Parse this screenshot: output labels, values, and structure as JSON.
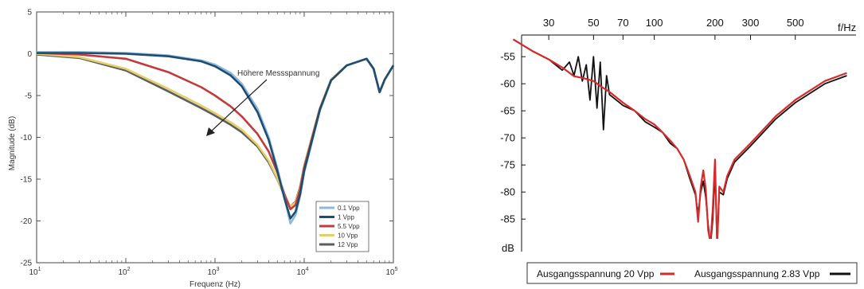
{
  "chart_data": [
    {
      "type": "line",
      "xlabel": "Frequenz (Hz)",
      "ylabel": "Magnitude (dB)",
      "xscale": "log",
      "xlim": [
        10,
        100000
      ],
      "ylim": [
        -25,
        5
      ],
      "x_ticks": [
        {
          "value": 10,
          "base": "10",
          "exp": "1"
        },
        {
          "value": 100,
          "base": "10",
          "exp": "2"
        },
        {
          "value": 1000,
          "base": "10",
          "exp": "3"
        },
        {
          "value": 10000,
          "base": "10",
          "exp": "4"
        },
        {
          "value": 100000,
          "base": "10",
          "exp": "5"
        }
      ],
      "y_ticks": [
        "5",
        "0",
        "-5",
        "-10",
        "-15",
        "-20",
        "-25"
      ],
      "y_tick_values": [
        5,
        0,
        -5,
        -10,
        -15,
        -20,
        -25
      ],
      "annotation": "Höhere Messspannung",
      "legend_position": "bottom-right",
      "series": [
        {
          "name": "0.1 Vpp",
          "color": "#8fb8dc",
          "x": [
            10,
            30,
            100,
            300,
            700,
            1000,
            1500,
            2000,
            3000,
            4000,
            5000,
            6000,
            7000,
            8000,
            9000,
            10000,
            15000,
            20000,
            30000,
            50000,
            60000,
            70000,
            80000,
            100000
          ],
          "y": [
            0.2,
            0.2,
            0.1,
            -0.2,
            -0.8,
            -1.3,
            -2.3,
            -3.6,
            -6.6,
            -10.0,
            -13.7,
            -17.2,
            -20.3,
            -19.3,
            -17.0,
            -14.2,
            -6.8,
            -3.2,
            -1.4,
            -0.6,
            -1.8,
            -4.6,
            -3.1,
            -1.4
          ]
        },
        {
          "name": "1 Vpp",
          "color": "#1d4e72",
          "x": [
            10,
            30,
            100,
            300,
            700,
            1000,
            1500,
            2000,
            3000,
            4000,
            5000,
            6000,
            7000,
            8000,
            9000,
            10000,
            15000,
            20000,
            30000,
            50000,
            60000,
            70000,
            80000,
            100000
          ],
          "y": [
            0.1,
            0.1,
            0.0,
            -0.3,
            -0.9,
            -1.5,
            -2.6,
            -3.9,
            -7.0,
            -10.3,
            -14.0,
            -17.3,
            -19.7,
            -18.9,
            -16.8,
            -14.0,
            -6.7,
            -3.2,
            -1.4,
            -0.6,
            -1.8,
            -4.6,
            -3.1,
            -1.4
          ]
        },
        {
          "name": "5.5 Vpp",
          "color": "#c23a3a",
          "x": [
            10,
            30,
            100,
            300,
            700,
            1000,
            1500,
            2000,
            3000,
            4000,
            5000,
            6000,
            7000,
            8000,
            9000,
            10000,
            15000,
            20000,
            30000,
            50000,
            60000,
            70000,
            80000,
            100000
          ],
          "y": [
            0.1,
            -0.1,
            -0.6,
            -2.2,
            -4.0,
            -5.0,
            -6.3,
            -7.5,
            -9.6,
            -11.7,
            -14.2,
            -16.8,
            -18.6,
            -18.1,
            -16.2,
            -13.6,
            -6.6,
            -3.2,
            -1.4,
            -0.6,
            -1.8,
            -4.6,
            -3.1,
            -1.4
          ]
        },
        {
          "name": "10 Vpp",
          "color": "#e5cf6a",
          "x": [
            10,
            30,
            100,
            300,
            700,
            1000,
            1500,
            2000,
            3000,
            4000,
            5000,
            6000,
            7000,
            8000,
            9000,
            10000,
            15000,
            20000,
            30000,
            50000,
            60000,
            70000,
            80000,
            100000
          ],
          "y": [
            0.0,
            -0.4,
            -1.8,
            -4.2,
            -6.2,
            -7.1,
            -8.2,
            -9.1,
            -10.9,
            -12.8,
            -14.9,
            -17.0,
            -18.3,
            -17.8,
            -16.0,
            -13.4,
            -6.5,
            -3.1,
            -1.4,
            -0.6,
            -1.8,
            -4.6,
            -3.1,
            -1.4
          ]
        },
        {
          "name": "12 Vpp",
          "color": "#5a5f5e",
          "x": [
            10,
            30,
            100,
            300,
            700,
            1000,
            1500,
            2000,
            3000,
            4000,
            5000,
            6000,
            7000,
            8000,
            9000,
            10000,
            15000,
            20000,
            30000,
            50000,
            60000,
            70000,
            80000,
            100000
          ],
          "y": [
            -0.1,
            -0.5,
            -2.0,
            -4.5,
            -6.5,
            -7.4,
            -8.5,
            -9.4,
            -11.1,
            -13.0,
            -15.0,
            -17.0,
            -18.3,
            -17.7,
            -15.9,
            -13.4,
            -6.5,
            -3.1,
            -1.4,
            -0.6,
            -1.8,
            -4.6,
            -3.1,
            -1.4
          ]
        }
      ]
    },
    {
      "type": "line",
      "xlabel": "f/Hz",
      "ylabel": "dB",
      "xscale": "log",
      "xlim": [
        22,
        1000
      ],
      "ylim": [
        -91,
        -51
      ],
      "x_ticks": [
        "30",
        "50",
        "70",
        "100",
        "200",
        "300",
        "500"
      ],
      "x_tick_values": [
        30,
        50,
        70,
        100,
        200,
        300,
        500
      ],
      "y_ticks": [
        "-55",
        "-60",
        "-65",
        "-70",
        "-75",
        "-80",
        "-85"
      ],
      "y_tick_values": [
        -55,
        -60,
        -65,
        -70,
        -75,
        -80,
        -85
      ],
      "legend_position": "bottom",
      "series": [
        {
          "name": "Ausgangsspannung 20 Vpp",
          "color": "#d62b2b",
          "x": [
            20,
            25,
            30,
            35,
            40,
            45,
            50,
            55,
            60,
            70,
            80,
            90,
            100,
            110,
            120,
            130,
            140,
            150,
            160,
            165,
            170,
            175,
            180,
            185,
            190,
            195,
            200,
            205,
            210,
            220,
            230,
            250,
            300,
            400,
            500,
            700,
            900
          ],
          "y": [
            -51.8,
            -54.0,
            -55.5,
            -57.0,
            -58.6,
            -59.0,
            -59.5,
            -60.6,
            -61.5,
            -63.5,
            -65.0,
            -66.5,
            -67.5,
            -69.0,
            -70.5,
            -72.0,
            -74.0,
            -77.0,
            -80.0,
            -85.5,
            -79.0,
            -76.0,
            -79.5,
            -87.0,
            -89.5,
            -83.0,
            -74.0,
            -90.0,
            -79.0,
            -80.0,
            -77.0,
            -74.0,
            -71.0,
            -66.0,
            -63.0,
            -59.5,
            -58.0
          ]
        },
        {
          "name": "Ausgangsspannung 2.83 Vpp",
          "color": "#111111",
          "x": [
            20,
            25,
            30,
            35,
            38,
            40,
            42,
            44,
            46,
            48,
            50,
            52,
            54,
            56,
            58,
            60,
            70,
            80,
            90,
            100,
            110,
            120,
            130,
            140,
            150,
            160,
            165,
            170,
            175,
            180,
            185,
            190,
            195,
            200,
            205,
            210,
            220,
            230,
            250,
            300,
            400,
            500,
            700,
            900
          ],
          "y": [
            -51.8,
            -54.0,
            -55.5,
            -57.5,
            -56.0,
            -58.5,
            -55.0,
            -59.5,
            -56.5,
            -63.0,
            -55.0,
            -64.5,
            -56.0,
            -68.5,
            -58.5,
            -62.0,
            -64.0,
            -65.0,
            -67.0,
            -68.0,
            -69.0,
            -71.0,
            -72.0,
            -74.0,
            -77.5,
            -80.5,
            -84.0,
            -80.0,
            -78.0,
            -81.0,
            -86.0,
            -90.0,
            -85.0,
            -76.0,
            -89.5,
            -80.0,
            -80.5,
            -77.5,
            -74.5,
            -71.5,
            -66.5,
            -63.5,
            -60.0,
            -58.5
          ]
        }
      ]
    }
  ]
}
